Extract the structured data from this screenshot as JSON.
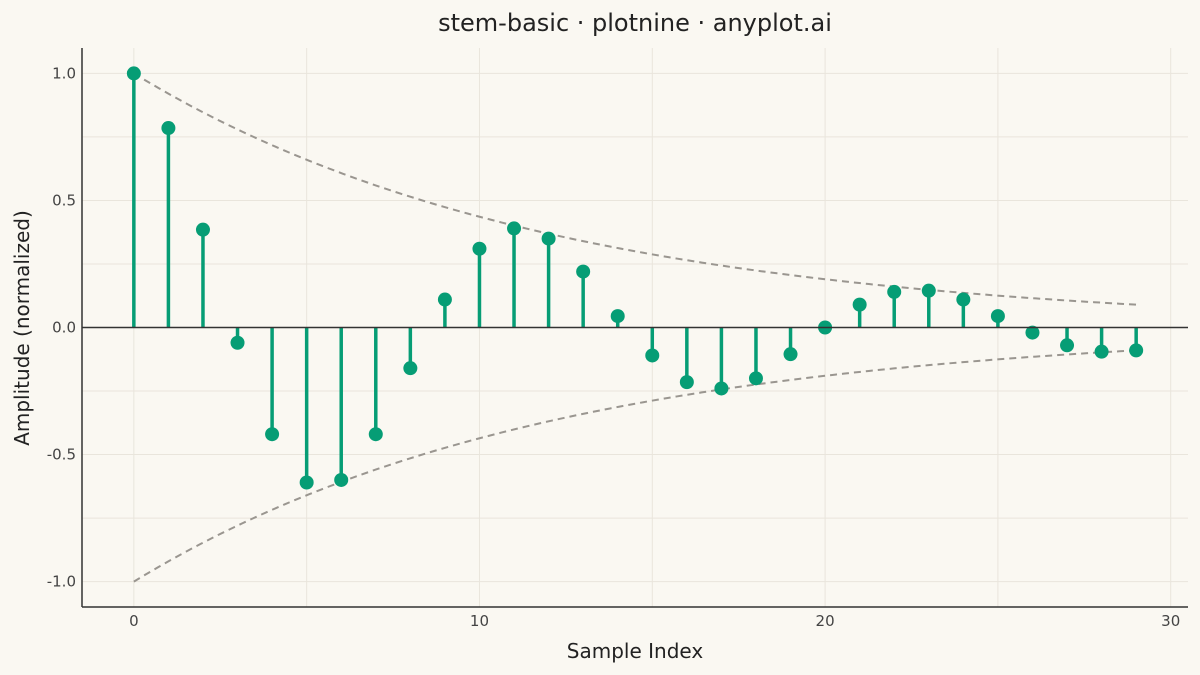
{
  "chart_data": {
    "type": "stem",
    "title": "stem-basic · plotnine · anyplot.ai",
    "xlabel": "Sample Index",
    "ylabel": "Amplitude (normalized)",
    "xlim": [
      -1.5,
      30.5
    ],
    "ylim": [
      -1.1,
      1.1
    ],
    "x_ticks": [
      0,
      10,
      20,
      30
    ],
    "x_tick_labels": [
      "0",
      "10",
      "20",
      "30"
    ],
    "y_ticks": [
      -1.0,
      -0.5,
      0.0,
      0.5,
      1.0
    ],
    "y_tick_labels": [
      "-1.0",
      "-0.5",
      "0.0",
      "0.5",
      "1.0"
    ],
    "grid": true,
    "series": [
      {
        "x": [
          0,
          1,
          2,
          3,
          4,
          5,
          6,
          7,
          8,
          9,
          10,
          11,
          12,
          13,
          14,
          15,
          16,
          17,
          18,
          19,
          20,
          21,
          22,
          23,
          24,
          25,
          26,
          27,
          28,
          29
        ],
        "values": [
          1.0,
          0.785,
          0.385,
          -0.06,
          -0.42,
          -0.61,
          -0.6,
          -0.42,
          -0.16,
          0.11,
          0.31,
          0.39,
          0.35,
          0.22,
          0.045,
          -0.11,
          -0.215,
          -0.24,
          -0.2,
          -0.105,
          0.0,
          0.09,
          0.14,
          0.145,
          0.11,
          0.045,
          -0.02,
          -0.07,
          -0.095,
          -0.09
        ]
      }
    ],
    "envelope": {
      "x_start": 0,
      "x_end": 29,
      "start_amplitude": 1.0,
      "end_amplitude": 0.09
    },
    "colors": {
      "stem": "#069D75",
      "envelope": "#9A9690",
      "background": "#FAF8F2"
    }
  }
}
